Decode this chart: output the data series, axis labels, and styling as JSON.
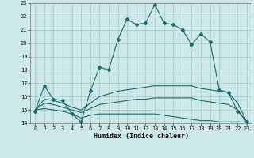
{
  "title": "",
  "xlabel": "Humidex (Indice chaleur)",
  "bg_color": "#cce8e8",
  "grid_color": "#aacccc",
  "line_color": "#1a6b6b",
  "xlim": [
    -0.5,
    23.5
  ],
  "ylim": [
    14,
    23
  ],
  "yticks": [
    14,
    15,
    16,
    17,
    18,
    19,
    20,
    21,
    22,
    23
  ],
  "xticks": [
    0,
    1,
    2,
    3,
    4,
    5,
    6,
    7,
    8,
    9,
    10,
    11,
    12,
    13,
    14,
    15,
    16,
    17,
    18,
    19,
    20,
    21,
    22,
    23
  ],
  "series": [
    {
      "x": [
        0,
        1,
        2,
        3,
        4,
        5,
        6,
        7,
        8,
        9,
        10,
        11,
        12,
        13,
        14,
        15,
        16,
        17,
        18,
        19,
        20,
        21,
        22,
        23
      ],
      "y": [
        14.9,
        16.8,
        15.8,
        15.7,
        14.7,
        14.1,
        16.4,
        18.2,
        18.0,
        20.3,
        21.8,
        21.4,
        21.5,
        22.9,
        21.5,
        21.4,
        21.0,
        19.9,
        20.7,
        20.1,
        16.5,
        16.3,
        14.9,
        14.1
      ],
      "marker": true
    },
    {
      "x": [
        0,
        1,
        2,
        3,
        4,
        5,
        6,
        7,
        8,
        9,
        10,
        11,
        12,
        13,
        14,
        15,
        16,
        17,
        18,
        19,
        20,
        21,
        22,
        23
      ],
      "y": [
        15.0,
        15.8,
        15.7,
        15.5,
        15.2,
        15.0,
        15.5,
        16.0,
        16.2,
        16.4,
        16.5,
        16.6,
        16.7,
        16.8,
        16.8,
        16.8,
        16.8,
        16.8,
        16.6,
        16.5,
        16.4,
        16.3,
        15.5,
        14.1
      ],
      "marker": false
    },
    {
      "x": [
        0,
        1,
        2,
        3,
        4,
        5,
        6,
        7,
        8,
        9,
        10,
        11,
        12,
        13,
        14,
        15,
        16,
        17,
        18,
        19,
        20,
        21,
        22,
        23
      ],
      "y": [
        15.0,
        15.5,
        15.4,
        15.2,
        15.0,
        14.8,
        15.1,
        15.4,
        15.5,
        15.6,
        15.7,
        15.8,
        15.8,
        15.9,
        15.9,
        15.9,
        15.9,
        15.9,
        15.7,
        15.6,
        15.5,
        15.4,
        15.0,
        14.1
      ],
      "marker": false
    },
    {
      "x": [
        0,
        1,
        2,
        3,
        4,
        5,
        6,
        7,
        8,
        9,
        10,
        11,
        12,
        13,
        14,
        15,
        16,
        17,
        18,
        19,
        20,
        21,
        22,
        23
      ],
      "y": [
        15.0,
        15.1,
        15.0,
        14.9,
        14.7,
        14.4,
        14.6,
        14.7,
        14.7,
        14.7,
        14.7,
        14.7,
        14.7,
        14.7,
        14.6,
        14.5,
        14.4,
        14.3,
        14.2,
        14.2,
        14.1,
        14.1,
        14.1,
        14.1
      ],
      "marker": false
    }
  ]
}
